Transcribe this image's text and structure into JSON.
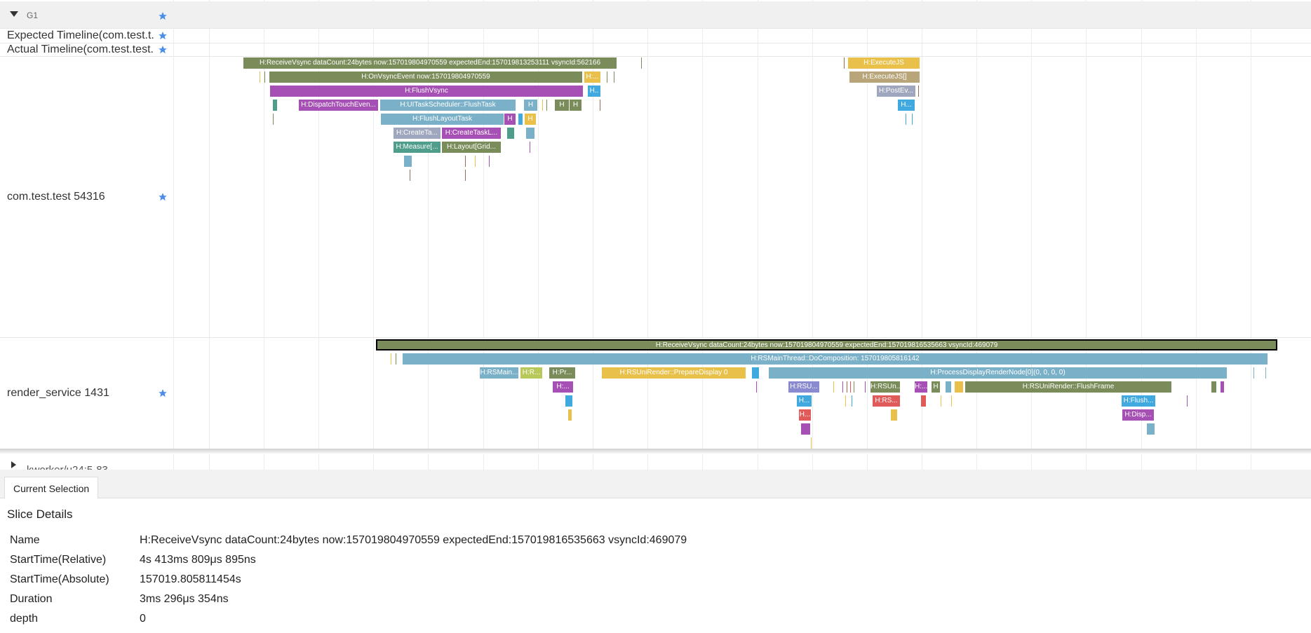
{
  "group": {
    "name": "G1"
  },
  "tracks": {
    "expected": "Expected Timeline(com.test.t...",
    "actual": "Actual Timeline(com.test.test...",
    "process1": "com.test.test 54316",
    "process2": "render_service 1431",
    "collapsed": "kworker/u24:5-83"
  },
  "slices": {
    "p1": [
      {
        "label": "H:ReceiveVsync dataCount:24bytes now:157019804970559 expectedEnd:157019813253111 vsyncId:562166",
        "color": "#7a8c5a"
      },
      {
        "label": "H:OnVsyncEvent now:157019804970559",
        "color": "#7a8c5a"
      },
      {
        "label": "H:...",
        "color": "#e8c04a"
      },
      {
        "label": "H:FlushVsync",
        "color": "#a64fb5"
      },
      {
        "label": "H..",
        "color": "#3fa9e0"
      },
      {
        "label": "H:DispatchTouchEven...",
        "color": "#a64fb5"
      },
      {
        "label": "H:UITaskScheduler::FlushTask",
        "color": "#7ab0c8"
      },
      {
        "label": "H",
        "color": "#7ab0c8"
      },
      {
        "label": "H",
        "color": "#7a8c5a"
      },
      {
        "label": "H",
        "color": "#7a8c5a"
      },
      {
        "label": "H:FlushLayoutTask",
        "color": "#7ab0c8"
      },
      {
        "label": "H",
        "color": "#a64fb5"
      },
      {
        "label": "H",
        "color": "#e8c04a"
      },
      {
        "label": "H:CreateTa...",
        "color": "#9ea7bd"
      },
      {
        "label": "H:CreateTaskL...",
        "color": "#a64fb5"
      },
      {
        "label": "H:Measure[...",
        "color": "#4f9e8c"
      },
      {
        "label": "H:Layout[Grid...",
        "color": "#7a8c5a"
      },
      {
        "label": "H:ExecuteJS",
        "color": "#e8c04a"
      },
      {
        "label": "H:ExecuteJS[]",
        "color": "#b8a67a"
      },
      {
        "label": "H:PostEv...",
        "color": "#9ea7bd"
      },
      {
        "label": "H...",
        "color": "#3fa9e0"
      }
    ],
    "p2": [
      {
        "label": "H:ReceiveVsync dataCount:24bytes now:157019804970559 expectedEnd:157019816535663 vsyncId:469079",
        "color": "#7a8c5a"
      },
      {
        "label": "H:RSMainThread::DoComposition: 157019805816142",
        "color": "#7ab0c8"
      },
      {
        "label": "H:RSMain...",
        "color": "#7ab0c8"
      },
      {
        "label": "H:R...",
        "color": "#b8c85a"
      },
      {
        "label": "H:Pr...",
        "color": "#7a8c5a"
      },
      {
        "label": "H:RSUniRender::PrepareDisplay 0",
        "color": "#e8c04a"
      },
      {
        "label": "H:ProcessDisplayRenderNode[0](0, 0, 0, 0)",
        "color": "#7ab0c8"
      },
      {
        "label": "H:...",
        "color": "#a64fb5"
      },
      {
        "label": "H:RSU...",
        "color": "#8a8ad0"
      },
      {
        "label": "H:RSUn...",
        "color": "#7a8c5a"
      },
      {
        "label": "H:...",
        "color": "#a64fb5"
      },
      {
        "label": "H",
        "color": "#7a8c5a"
      },
      {
        "label": "H:RSUniRender::FlushFrame",
        "color": "#7a8c5a"
      },
      {
        "label": "H...",
        "color": "#3fa9e0"
      },
      {
        "label": "H:RS...",
        "color": "#e05a5a"
      },
      {
        "label": "H:Flush...",
        "color": "#3fa9e0"
      },
      {
        "label": "H...",
        "color": "#e05a5a"
      },
      {
        "label": "H:Disp...",
        "color": "#a64fb5"
      }
    ]
  },
  "details": {
    "tab": "Current Selection",
    "title": "Slice Details",
    "rows": [
      {
        "label": "Name",
        "value": "H:ReceiveVsync dataCount:24bytes now:157019804970559 expectedEnd:157019816535663 vsyncId:469079"
      },
      {
        "label": "StartTime(Relative)",
        "value": "4s 413ms 809μs 895ns"
      },
      {
        "label": "StartTime(Absolute)",
        "value": "157019.805811454s"
      },
      {
        "label": "Duration",
        "value": "3ms 296μs 354ns"
      },
      {
        "label": "depth",
        "value": "0"
      }
    ]
  },
  "colors": {
    "star": "#4a8ee8",
    "selection_border": "#000000"
  }
}
